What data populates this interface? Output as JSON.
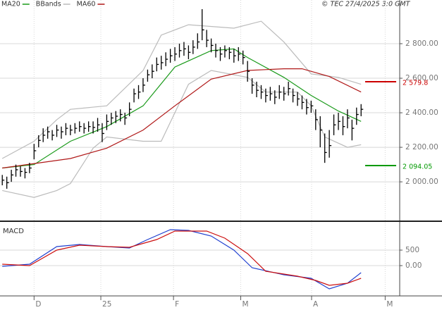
{
  "chart_data": [
    {
      "type": "ohlc",
      "copyright": "© TEC 27/4/2025 3:0 GMT",
      "xlim": [
        -0.5,
        87.5
      ],
      "xticks": [
        {
          "value": 7,
          "label": "D"
        },
        {
          "value": 21.7,
          "label": "25"
        },
        {
          "value": 37.7,
          "label": "F"
        },
        {
          "value": 52.5,
          "label": "M"
        },
        {
          "value": 68.1,
          "label": "A"
        },
        {
          "value": 84.3,
          "label": "M"
        }
      ],
      "ylim": [
        1776,
        3053
      ],
      "yticks": [
        {
          "value": 2000,
          "label": "2 000.00"
        },
        {
          "value": 2200,
          "label": "2 200.00"
        },
        {
          "value": 2400,
          "label": "2 400.00"
        },
        {
          "value": 2600,
          "label": "2 600.00"
        },
        {
          "value": 2800,
          "label": "2 800.00"
        }
      ],
      "grid": true,
      "bars": {
        "color": "#000000",
        "high": [
          2040,
          2030,
          2070,
          2100,
          2090,
          2080,
          2110,
          2220,
          2270,
          2310,
          2320,
          2300,
          2330,
          2320,
          2340,
          2330,
          2340,
          2350,
          2340,
          2350,
          2350,
          2370,
          2340,
          2390,
          2400,
          2410,
          2420,
          2400,
          2460,
          2540,
          2560,
          2600,
          2650,
          2680,
          2720,
          2730,
          2750,
          2770,
          2780,
          2800,
          2810,
          2790,
          2820,
          2860,
          3000,
          2880,
          2830,
          2800,
          2780,
          2790,
          2780,
          2770,
          2780,
          2760,
          2700,
          2600,
          2580,
          2560,
          2540,
          2550,
          2530,
          2560,
          2550,
          2580,
          2540,
          2520,
          2500,
          2480,
          2470,
          2420,
          2380,
          2280,
          2300,
          2390,
          2400,
          2380,
          2420,
          2360,
          2430,
          2450
        ],
        "low": [
          1980,
          1960,
          2000,
          2030,
          2030,
          2020,
          2050,
          2130,
          2200,
          2230,
          2250,
          2240,
          2260,
          2250,
          2270,
          2270,
          2280,
          2290,
          2280,
          2290,
          2280,
          2290,
          2230,
          2300,
          2330,
          2340,
          2350,
          2330,
          2380,
          2460,
          2480,
          2520,
          2580,
          2600,
          2640,
          2650,
          2670,
          2690,
          2700,
          2720,
          2730,
          2710,
          2740,
          2770,
          2820,
          2780,
          2750,
          2720,
          2700,
          2720,
          2710,
          2690,
          2700,
          2680,
          2580,
          2510,
          2490,
          2480,
          2460,
          2470,
          2450,
          2480,
          2470,
          2500,
          2460,
          2440,
          2420,
          2390,
          2400,
          2300,
          2200,
          2110,
          2140,
          2270,
          2300,
          2270,
          2310,
          2240,
          2330,
          2380
        ],
        "close": [
          2010,
          1995,
          2040,
          2070,
          2060,
          2055,
          2080,
          2180,
          2240,
          2270,
          2290,
          2270,
          2300,
          2290,
          2310,
          2300,
          2310,
          2320,
          2310,
          2320,
          2315,
          2330,
          2280,
          2350,
          2370,
          2380,
          2390,
          2370,
          2420,
          2510,
          2520,
          2560,
          2620,
          2640,
          2680,
          2690,
          2710,
          2730,
          2740,
          2760,
          2770,
          2750,
          2780,
          2810,
          2880,
          2820,
          2790,
          2760,
          2740,
          2760,
          2750,
          2730,
          2740,
          2720,
          2640,
          2560,
          2530,
          2520,
          2500,
          2510,
          2490,
          2520,
          2510,
          2540,
          2500,
          2480,
          2460,
          2430,
          2440,
          2360,
          2300,
          2170,
          2210,
          2330,
          2350,
          2320,
          2370,
          2310,
          2390,
          2420
        ]
      },
      "series": [
        {
          "name": "MA20",
          "color": "#1a9a1a",
          "x": [
            0,
            7,
            15,
            23,
            31,
            38,
            46,
            51,
            54,
            62,
            68,
            74,
            79
          ],
          "values": [
            2080,
            2100,
            2235,
            2320,
            2440,
            2665,
            2760,
            2770,
            2720,
            2605,
            2500,
            2410,
            2350
          ]
        },
        {
          "name": "BBands",
          "color": "#bbbbbb",
          "x": [
            0,
            7,
            12,
            15,
            23,
            31,
            35,
            41,
            51,
            57,
            62,
            68,
            74,
            79
          ],
          "values": [
            2135,
            2235,
            2360,
            2420,
            2440,
            2645,
            2850,
            2910,
            2890,
            2930,
            2810,
            2625,
            2605,
            2565
          ],
          "lower": {
            "x": [
              0,
              7,
              12,
              15,
              20,
              23,
              31,
              35,
              41,
              46,
              54,
              58,
              65,
              68,
              71,
              76,
              79
            ],
            "values": [
              1950,
              1910,
              1950,
              1990,
              2195,
              2260,
              2235,
              2235,
              2565,
              2645,
              2605,
              2520,
              2520,
              2440,
              2260,
              2200,
              2215
            ]
          }
        },
        {
          "name": "MA60",
          "color": "#b01818",
          "x": [
            0,
            15,
            23,
            31,
            38,
            46,
            54,
            62,
            66,
            72,
            79
          ],
          "values": [
            2080,
            2135,
            2195,
            2300,
            2440,
            2595,
            2645,
            2655,
            2655,
            2610,
            2520
          ]
        }
      ],
      "levels": [
        {
          "value": 2579.8,
          "label": "2 579.8",
          "color": "#cc0000"
        },
        {
          "value": 2094.05,
          "label": "2 094.05",
          "color": "#009900"
        }
      ]
    },
    {
      "type": "line",
      "title": "MACD",
      "ylim": [
        -977,
        1386
      ],
      "yticks": [
        {
          "value": 0,
          "label": "0.00"
        },
        500
      ],
      "series": [
        {
          "color": "#2040d0",
          "x": [
            0,
            6,
            12,
            17,
            23,
            28,
            32,
            37,
            41,
            46,
            51,
            55,
            62,
            68,
            72,
            76,
            79
          ],
          "values": [
            -23,
            45,
            614,
            682,
            614,
            568,
            841,
            1159,
            1136,
            955,
            500,
            -68,
            -295,
            -409,
            -750,
            -568,
            -227
          ]
        },
        {
          "color": "#cc1010",
          "x": [
            0,
            6,
            12,
            17,
            23,
            28,
            34,
            38,
            45,
            49,
            54,
            58,
            65,
            69,
            72,
            76,
            79
          ],
          "values": [
            45,
            0,
            500,
            659,
            614,
            591,
            841,
            1114,
            1114,
            886,
            386,
            -182,
            -341,
            -477,
            -636,
            -568,
            -409
          ]
        }
      ]
    }
  ]
}
